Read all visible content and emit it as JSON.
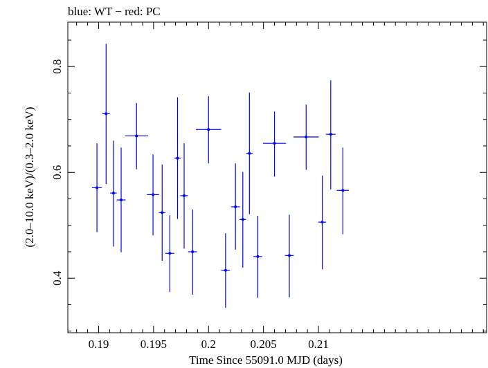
{
  "chart_data": {
    "type": "scatter",
    "title": "blue: WT − red: PC",
    "xlabel": "Time Since 55091.0 MJD (days)",
    "ylabel": "(2.0–10.0 keV)/(0.3–2.0 keV)",
    "xlim": [
      0.1872,
      0.2253
    ],
    "ylim": [
      0.297,
      0.884
    ],
    "x_ticks": [
      {
        "value": 0.19,
        "label": "0.19"
      },
      {
        "value": 0.195,
        "label": "0.195"
      },
      {
        "value": 0.2,
        "label": "0.2"
      },
      {
        "value": 0.205,
        "label": "0.205"
      },
      {
        "value": 0.21,
        "label": "0.21"
      }
    ],
    "y_ticks": [
      {
        "value": 0.4,
        "label": "0.4"
      },
      {
        "value": 0.6,
        "label": "0.6"
      },
      {
        "value": 0.8,
        "label": "0.8"
      }
    ],
    "grid": false,
    "series": [
      {
        "color": "#0000ff",
        "points": [
          {
            "x": 0.18985,
            "y": 0.571,
            "xerr": 0.00045,
            "ylow": 0.487,
            "yhigh": 0.655
          },
          {
            "x": 0.19068,
            "y": 0.711,
            "xerr": 0.00035,
            "ylow": 0.578,
            "yhigh": 0.843
          },
          {
            "x": 0.19135,
            "y": 0.561,
            "xerr": 0.0003,
            "ylow": 0.46,
            "yhigh": 0.66
          },
          {
            "x": 0.19205,
            "y": 0.548,
            "xerr": 0.0004,
            "ylow": 0.449,
            "yhigh": 0.647
          },
          {
            "x": 0.19345,
            "y": 0.669,
            "xerr": 0.00105,
            "ylow": 0.606,
            "yhigh": 0.731
          },
          {
            "x": 0.19495,
            "y": 0.558,
            "xerr": 0.00055,
            "ylow": 0.481,
            "yhigh": 0.634
          },
          {
            "x": 0.19578,
            "y": 0.524,
            "xerr": 0.0003,
            "ylow": 0.433,
            "yhigh": 0.615
          },
          {
            "x": 0.19648,
            "y": 0.447,
            "xerr": 0.0004,
            "ylow": 0.374,
            "yhigh": 0.519
          },
          {
            "x": 0.19718,
            "y": 0.627,
            "xerr": 0.0003,
            "ylow": 0.512,
            "yhigh": 0.742
          },
          {
            "x": 0.19778,
            "y": 0.556,
            "xerr": 0.00035,
            "ylow": 0.456,
            "yhigh": 0.655
          },
          {
            "x": 0.19855,
            "y": 0.45,
            "xerr": 0.0004,
            "ylow": 0.369,
            "yhigh": 0.53
          },
          {
            "x": 0.2,
            "y": 0.681,
            "xerr": 0.00115,
            "ylow": 0.617,
            "yhigh": 0.744
          },
          {
            "x": 0.20155,
            "y": 0.415,
            "xerr": 0.0004,
            "ylow": 0.344,
            "yhigh": 0.485
          },
          {
            "x": 0.20245,
            "y": 0.535,
            "xerr": 0.0004,
            "ylow": 0.454,
            "yhigh": 0.617
          },
          {
            "x": 0.20312,
            "y": 0.511,
            "xerr": 0.0003,
            "ylow": 0.42,
            "yhigh": 0.601
          },
          {
            "x": 0.20372,
            "y": 0.636,
            "xerr": 0.0003,
            "ylow": 0.521,
            "yhigh": 0.751
          },
          {
            "x": 0.20448,
            "y": 0.441,
            "xerr": 0.0004,
            "ylow": 0.363,
            "yhigh": 0.518
          },
          {
            "x": 0.206,
            "y": 0.655,
            "xerr": 0.00105,
            "ylow": 0.592,
            "yhigh": 0.715
          },
          {
            "x": 0.20735,
            "y": 0.443,
            "xerr": 0.0004,
            "ylow": 0.364,
            "yhigh": 0.52
          },
          {
            "x": 0.20888,
            "y": 0.667,
            "xerr": 0.00115,
            "ylow": 0.605,
            "yhigh": 0.728
          },
          {
            "x": 0.21035,
            "y": 0.506,
            "xerr": 0.00035,
            "ylow": 0.417,
            "yhigh": 0.594
          },
          {
            "x": 0.21112,
            "y": 0.672,
            "xerr": 0.00045,
            "ylow": 0.568,
            "yhigh": 0.774
          },
          {
            "x": 0.21222,
            "y": 0.566,
            "xerr": 0.00055,
            "ylow": 0.483,
            "yhigh": 0.647
          }
        ]
      }
    ]
  }
}
